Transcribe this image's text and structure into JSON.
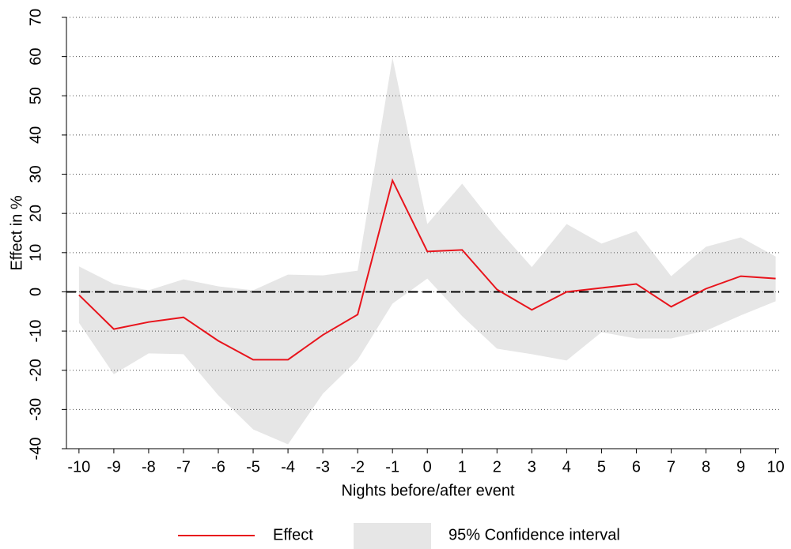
{
  "chart_data": {
    "type": "line",
    "xlabel": "Nights before/after event",
    "ylabel": "Effect in %",
    "x": [
      -10,
      -9,
      -8,
      -7,
      -6,
      -5,
      -4,
      -3,
      -2,
      -1,
      0,
      1,
      2,
      3,
      4,
      5,
      6,
      7,
      8,
      9,
      10
    ],
    "series": [
      {
        "name": "Effect",
        "color": "#e8141c",
        "values": [
          -0.8,
          -9.5,
          -7.7,
          -6.5,
          -12.5,
          -17.3,
          -17.3,
          -11,
          -5.8,
          28.4,
          10.3,
          10.7,
          0.6,
          -4.6,
          0,
          1,
          2,
          -3.8,
          0.8,
          4,
          3.4
        ]
      }
    ],
    "band": {
      "name": "95% Confidence interval",
      "color": "#e6e6e6",
      "lower": [
        -7.9,
        -21,
        -15.7,
        -15.9,
        -26.4,
        -35.1,
        -38.9,
        -26,
        -17.3,
        -3,
        3.4,
        -6.2,
        -14.5,
        -15.9,
        -17.5,
        -10.3,
        -11.9,
        -11.9,
        -9.9,
        -6,
        -2.4
      ],
      "upper": [
        6.5,
        2,
        0.4,
        3.2,
        1.4,
        0.4,
        4.4,
        4.2,
        5.4,
        59.7,
        17.3,
        27.6,
        16.3,
        6.3,
        17.3,
        12.3,
        15.5,
        4,
        11.5,
        13.9,
        9
      ]
    },
    "reference_line": 0,
    "xlim": [
      -10.36,
      10.1
    ],
    "xticks": [
      -10,
      -9,
      -8,
      -7,
      -6,
      -5,
      -4,
      -3,
      -2,
      -1,
      0,
      1,
      2,
      3,
      4,
      5,
      6,
      7,
      8,
      9,
      10
    ],
    "ylim": [
      -40,
      70
    ],
    "yticks": [
      -40,
      -30,
      -20,
      -10,
      0,
      10,
      20,
      30,
      40,
      50,
      60,
      70
    ],
    "grid": true,
    "legend": "bottom"
  }
}
